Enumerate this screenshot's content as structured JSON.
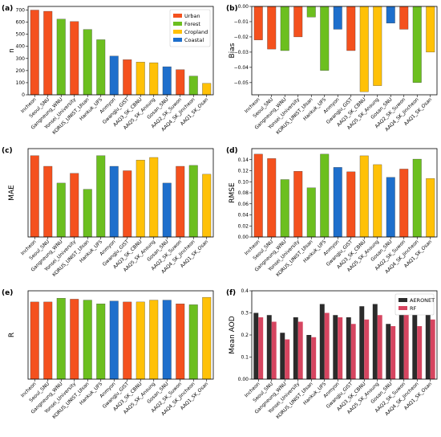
{
  "colors": {
    "Urban": "#f4511e",
    "Forest": "#6cbf1f",
    "Cropland": "#ffc107",
    "Coastal": "#1e6fcc",
    "AERONET": "#2b2b2b",
    "RF": "#d64560"
  },
  "chart_data": [
    {
      "panel_label": "(a)",
      "type": "bar",
      "ylabel": "n",
      "categories": [
        "Incheon",
        "Seoul_SNU",
        "Gangneung_WNU",
        "Yonsei_University",
        "KORUS_UNIST_Ulsan",
        "Hankuk_UFS",
        "Anmyon",
        "Gwangju_GIST",
        "AAQ3_SK_CBNU",
        "AAQ5_SK_Ansung",
        "Gosan_SNU",
        "AAQ2_SK_Suwon",
        "AAQ4_SK_Jincheon",
        "AAQ1_SK_Osan"
      ],
      "groups": [
        "Urban",
        "Urban",
        "Forest",
        "Urban",
        "Forest",
        "Forest",
        "Coastal",
        "Urban",
        "Cropland",
        "Cropland",
        "Coastal",
        "Urban",
        "Forest",
        "Cropland"
      ],
      "values": [
        700,
        690,
        625,
        605,
        540,
        455,
        320,
        290,
        270,
        265,
        232,
        208,
        155,
        95
      ],
      "ylim": [
        0,
        730
      ],
      "yticks": [
        0,
        100,
        200,
        300,
        400,
        500,
        600,
        700
      ],
      "legend": {
        "position": "upper right",
        "entries": [
          "Urban",
          "Forest",
          "Cropland",
          "Coastal"
        ]
      }
    },
    {
      "panel_label": "(b)",
      "type": "bar",
      "ylabel": "Bias",
      "categories": [
        "Incheon",
        "Seoul_SNU",
        "Gangneung_WNU",
        "Yonsei_University",
        "KORUS_UNIST_Ulsan",
        "Hankuk_UFS",
        "Anmyon",
        "Gwangju_GIST",
        "AAQ3_SK_CBNU",
        "AAQ5_SK_Ansung",
        "Gosan_SNU",
        "AAQ2_SK_Suwon",
        "AAQ4_SK_Jincheon",
        "AAQ1_SK_Osan"
      ],
      "groups": [
        "Urban",
        "Urban",
        "Forest",
        "Urban",
        "Forest",
        "Forest",
        "Coastal",
        "Urban",
        "Cropland",
        "Cropland",
        "Coastal",
        "Urban",
        "Forest",
        "Cropland"
      ],
      "values": [
        -0.022,
        -0.028,
        -0.029,
        -0.02,
        -0.007,
        -0.042,
        -0.015,
        -0.029,
        -0.056,
        -0.052,
        -0.011,
        -0.015,
        -0.05,
        -0.03
      ],
      "ylim": [
        -0.058,
        0.0
      ],
      "yticks": [
        0.0,
        -0.01,
        -0.02,
        -0.03,
        -0.04,
        -0.05
      ]
    },
    {
      "panel_label": "(c)",
      "type": "bar",
      "ylabel": "MAE",
      "categories": [
        "Incheon",
        "Seoul_SNU",
        "Gangneung_WNU",
        "Yonsei_University",
        "KORUS_UNIST_Ulsan",
        "Hankuk_UFS",
        "Anmyon",
        "Gwangju_GIST",
        "AAQ3_SK_CBNU",
        "AAQ5_SK_Ansung",
        "Gosan_SNU",
        "AAQ2_SK_Suwon",
        "AAQ4_SK_Jincheon",
        "AAQ1_SK_Osan"
      ],
      "groups": [
        "Urban",
        "Urban",
        "Forest",
        "Urban",
        "Forest",
        "Forest",
        "Coastal",
        "Urban",
        "Cropland",
        "Cropland",
        "Coastal",
        "Urban",
        "Forest",
        "Cropland"
      ],
      "values": [
        0.092,
        0.08,
        0.061,
        0.072,
        0.054,
        0.092,
        0.08,
        0.075,
        0.087,
        0.09,
        0.061,
        0.08,
        0.081,
        0.071
      ],
      "ylim": [
        0,
        0.1
      ],
      "yticks": []
    },
    {
      "panel_label": "(d)",
      "type": "bar",
      "ylabel": "RMSE",
      "categories": [
        "Incheon",
        "Seoul_SNU",
        "Gangneung_WNU",
        "Yonsei_University",
        "KORUS_UNIST_Ulsan",
        "Hankuk_UFS",
        "Anmyon",
        "Gwangju_GIST",
        "AAQ3_SK_CBNU",
        "AAQ5_SK_Ansung",
        "Gosan_SNU",
        "AAQ2_SK_Suwon",
        "AAQ4_SK_Jincheon",
        "AAQ1_SK_Osan"
      ],
      "groups": [
        "Urban",
        "Urban",
        "Forest",
        "Urban",
        "Forest",
        "Forest",
        "Coastal",
        "Urban",
        "Cropland",
        "Cropland",
        "Coastal",
        "Urban",
        "Forest",
        "Cropland"
      ],
      "values": [
        0.15,
        0.142,
        0.104,
        0.119,
        0.089,
        0.15,
        0.126,
        0.118,
        0.147,
        0.131,
        0.108,
        0.123,
        0.141,
        0.106
      ],
      "ylim": [
        0,
        0.16
      ],
      "yticks": [
        0.0,
        0.02,
        0.04,
        0.06,
        0.08,
        0.1,
        0.12,
        0.14
      ]
    },
    {
      "panel_label": "(e)",
      "type": "bar",
      "ylabel": "R",
      "categories": [
        "Incheon",
        "Seoul_SNU",
        "Gangneung_WNU",
        "Yonsei_University",
        "KORUS_UNIST_Ulsan",
        "Hankuk_UFS",
        "Anmyon",
        "Gwangju_GIST",
        "AAQ3_SK_CBNU",
        "AAQ5_SK_Ansung",
        "Gosan_SNU",
        "AAQ2_SK_Suwon",
        "AAQ4_SK_Jincheon",
        "AAQ1_SK_Osan"
      ],
      "groups": [
        "Urban",
        "Urban",
        "Forest",
        "Urban",
        "Forest",
        "Forest",
        "Coastal",
        "Urban",
        "Cropland",
        "Cropland",
        "Coastal",
        "Urban",
        "Forest",
        "Cropland"
      ],
      "values": [
        0.83,
        0.83,
        0.87,
        0.86,
        0.85,
        0.81,
        0.84,
        0.83,
        0.83,
        0.85,
        0.85,
        0.81,
        0.8,
        0.88
      ],
      "ylim": [
        0,
        0.95
      ],
      "yticks": []
    },
    {
      "panel_label": "(f)",
      "type": "bar",
      "ylabel": "Mean AOD",
      "categories": [
        "Incheon",
        "Seoul_SNU",
        "Gangneung_WNU",
        "Yonsei_University",
        "KORUS_UNIST_Ulsan",
        "Hankuk_UFS",
        "Anmyon",
        "Gwangju_GIST",
        "AAQ3_SK_CBNU",
        "AAQ5_SK_Ansung",
        "Gosan_SNU",
        "AAQ2_SK_Suwon",
        "AAQ4_SK_Jincheon",
        "AAQ1_SK_Osan"
      ],
      "series": [
        {
          "name": "AERONET",
          "values": [
            0.3,
            0.29,
            0.21,
            0.28,
            0.2,
            0.34,
            0.29,
            0.28,
            0.33,
            0.34,
            0.25,
            0.33,
            0.3,
            0.3
          ]
        },
        {
          "name": "RF",
          "values": [
            0.28,
            0.26,
            0.18,
            0.26,
            0.19,
            0.3,
            0.28,
            0.25,
            0.27,
            0.29,
            0.24,
            0.31,
            0.24,
            0.27
          ]
        }
      ],
      "ylim": [
        0,
        0.4
      ],
      "yticks": [
        0.0,
        0.1,
        0.2,
        0.3,
        0.4
      ],
      "legend": {
        "position": "upper right",
        "entries": [
          "AERONET",
          "RF"
        ]
      }
    }
  ]
}
